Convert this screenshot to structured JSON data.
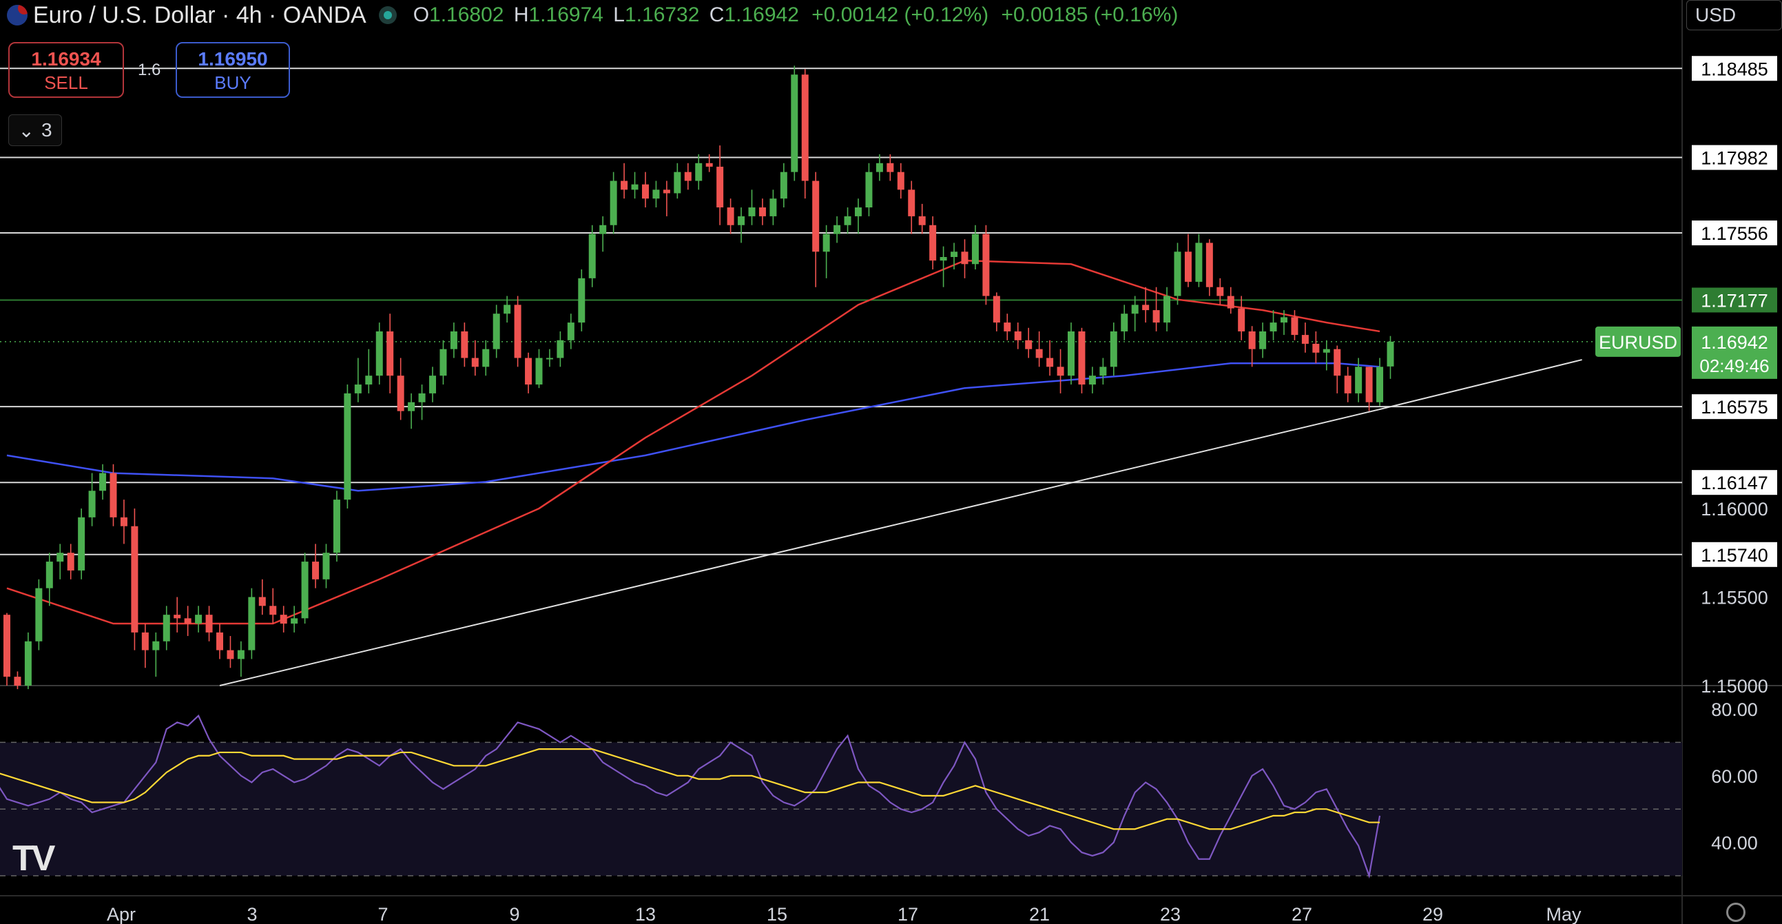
{
  "header": {
    "title": "Euro / U.S. Dollar · 4h · OANDA",
    "ohlc": [
      {
        "k": "O",
        "v": "1.16802"
      },
      {
        "k": "H",
        "v": "1.16974"
      },
      {
        "k": "L",
        "v": "1.16732"
      },
      {
        "k": "C",
        "v": "1.16942"
      },
      {
        "k": "",
        "v": "+0.00142 (+0.12%)"
      },
      {
        "k": "",
        "v": "+0.00185 (+0.16%)"
      }
    ]
  },
  "trade": {
    "sell_price": "1.16934",
    "sell_label": "SELL",
    "spread": "1.6",
    "buy_price": "1.16950",
    "buy_label": "BUY"
  },
  "indicators_toggle": {
    "count": "3"
  },
  "currency_selector": "USD",
  "symbol_tag": "EURUSD",
  "current_price": "1.16942",
  "countdown": "02:49:46",
  "colors": {
    "up": "#4caf50",
    "down": "#ef5350",
    "ma_fast": "#e53935",
    "ma_slow": "#3f51f5",
    "rsi": "#7e57c2",
    "rsi_ma": "#fdd835"
  },
  "chart_data": {
    "type": "candlestick",
    "timeframe": "4h",
    "price_axis_ticks": [
      "1.18485",
      "1.17982",
      "1.17556",
      "1.17177",
      "1.16942",
      "1.16575",
      "1.16147",
      "1.16000",
      "1.15740",
      "1.15500",
      "1.15000"
    ],
    "horizontal_levels": [
      1.18485,
      1.17982,
      1.17556,
      1.17177,
      1.16575,
      1.16147,
      1.1574
    ],
    "highlighted_level": 1.17177,
    "ylim": [
      1.15,
      1.187
    ],
    "x_tick_labels": [
      "Apr",
      "3",
      "7",
      "9",
      "13",
      "15",
      "17",
      "21",
      "23",
      "27",
      "29",
      "May"
    ],
    "rsi_axis_ticks": [
      "80.00",
      "60.00",
      "40.00"
    ],
    "rsi_bands": [
      70,
      50,
      30
    ],
    "rsi_ylim": [
      24,
      86
    ],
    "candles": [
      [
        1.154,
        1.1541,
        1.15,
        1.1505
      ],
      [
        1.1505,
        1.1508,
        1.1498,
        1.15
      ],
      [
        1.15,
        1.153,
        1.1498,
        1.1525
      ],
      [
        1.1525,
        1.156,
        1.152,
        1.1555
      ],
      [
        1.1555,
        1.1575,
        1.1545,
        1.157
      ],
      [
        1.157,
        1.158,
        1.156,
        1.1575
      ],
      [
        1.1575,
        1.158,
        1.156,
        1.1565
      ],
      [
        1.1565,
        1.16,
        1.156,
        1.1595
      ],
      [
        1.1595,
        1.162,
        1.159,
        1.161
      ],
      [
        1.161,
        1.1625,
        1.1605,
        1.162
      ],
      [
        1.162,
        1.1625,
        1.159,
        1.1595
      ],
      [
        1.1595,
        1.1605,
        1.158,
        1.159
      ],
      [
        1.159,
        1.16,
        1.152,
        1.153
      ],
      [
        1.153,
        1.1535,
        1.151,
        1.152
      ],
      [
        1.152,
        1.153,
        1.1505,
        1.1525
      ],
      [
        1.1525,
        1.1545,
        1.152,
        1.154
      ],
      [
        1.154,
        1.155,
        1.153,
        1.1538
      ],
      [
        1.1538,
        1.1545,
        1.1528,
        1.1535
      ],
      [
        1.1535,
        1.1545,
        1.153,
        1.154
      ],
      [
        1.154,
        1.1545,
        1.1525,
        1.153
      ],
      [
        1.153,
        1.1535,
        1.1515,
        1.152
      ],
      [
        1.152,
        1.1528,
        1.151,
        1.1515
      ],
      [
        1.1515,
        1.1525,
        1.1505,
        1.152
      ],
      [
        1.152,
        1.1555,
        1.1515,
        1.155
      ],
      [
        1.155,
        1.156,
        1.154,
        1.1545
      ],
      [
        1.1545,
        1.1555,
        1.1535,
        1.154
      ],
      [
        1.154,
        1.1545,
        1.153,
        1.1535
      ],
      [
        1.1535,
        1.1545,
        1.153,
        1.1538
      ],
      [
        1.1538,
        1.1575,
        1.1535,
        1.157
      ],
      [
        1.157,
        1.158,
        1.1555,
        1.156
      ],
      [
        1.156,
        1.158,
        1.1555,
        1.1575
      ],
      [
        1.1575,
        1.161,
        1.157,
        1.1605
      ],
      [
        1.1605,
        1.167,
        1.16,
        1.1665
      ],
      [
        1.1665,
        1.1685,
        1.166,
        1.167
      ],
      [
        1.167,
        1.169,
        1.1665,
        1.1675
      ],
      [
        1.1675,
        1.1705,
        1.167,
        1.17
      ],
      [
        1.17,
        1.171,
        1.1665,
        1.1675
      ],
      [
        1.1675,
        1.1685,
        1.165,
        1.1655
      ],
      [
        1.1655,
        1.1665,
        1.1645,
        1.166
      ],
      [
        1.166,
        1.167,
        1.165,
        1.1665
      ],
      [
        1.1665,
        1.168,
        1.166,
        1.1675
      ],
      [
        1.1675,
        1.1695,
        1.167,
        1.169
      ],
      [
        1.169,
        1.1705,
        1.1685,
        1.17
      ],
      [
        1.17,
        1.1705,
        1.168,
        1.1685
      ],
      [
        1.1685,
        1.1695,
        1.1675,
        1.168
      ],
      [
        1.168,
        1.1695,
        1.1675,
        1.169
      ],
      [
        1.169,
        1.1715,
        1.1685,
        1.171
      ],
      [
        1.171,
        1.172,
        1.1705,
        1.1715
      ],
      [
        1.1715,
        1.172,
        1.168,
        1.1685
      ],
      [
        1.1685,
        1.1688,
        1.1665,
        1.167
      ],
      [
        1.167,
        1.169,
        1.1668,
        1.1685
      ],
      [
        1.1685,
        1.169,
        1.168,
        1.1685
      ],
      [
        1.1685,
        1.17,
        1.168,
        1.1695
      ],
      [
        1.1695,
        1.171,
        1.169,
        1.1705
      ],
      [
        1.1705,
        1.1735,
        1.17,
        1.173
      ],
      [
        1.173,
        1.176,
        1.1725,
        1.1755
      ],
      [
        1.1755,
        1.1765,
        1.1745,
        1.176
      ],
      [
        1.176,
        1.179,
        1.1755,
        1.1785
      ],
      [
        1.1785,
        1.1795,
        1.1775,
        1.178
      ],
      [
        1.178,
        1.179,
        1.1775,
        1.1783
      ],
      [
        1.1783,
        1.179,
        1.177,
        1.1775
      ],
      [
        1.1775,
        1.1785,
        1.177,
        1.178
      ],
      [
        1.178,
        1.1785,
        1.1765,
        1.1778
      ],
      [
        1.1778,
        1.1795,
        1.1775,
        1.179
      ],
      [
        1.179,
        1.1795,
        1.178,
        1.1785
      ],
      [
        1.1785,
        1.18,
        1.178,
        1.1795
      ],
      [
        1.1795,
        1.18,
        1.179,
        1.1793
      ],
      [
        1.1793,
        1.1805,
        1.176,
        1.177
      ],
      [
        1.177,
        1.1775,
        1.1755,
        1.176
      ],
      [
        1.176,
        1.177,
        1.175,
        1.1765
      ],
      [
        1.1765,
        1.178,
        1.176,
        1.177
      ],
      [
        1.177,
        1.1775,
        1.176,
        1.1765
      ],
      [
        1.1765,
        1.178,
        1.176,
        1.1775
      ],
      [
        1.1775,
        1.1795,
        1.177,
        1.179
      ],
      [
        1.179,
        1.185,
        1.1785,
        1.1845
      ],
      [
        1.1845,
        1.1848,
        1.1775,
        1.1785
      ],
      [
        1.1785,
        1.179,
        1.1725,
        1.1745
      ],
      [
        1.1745,
        1.176,
        1.173,
        1.1755
      ],
      [
        1.1755,
        1.1765,
        1.175,
        1.176
      ],
      [
        1.176,
        1.177,
        1.1755,
        1.1765
      ],
      [
        1.1765,
        1.1775,
        1.1755,
        1.177
      ],
      [
        1.177,
        1.1795,
        1.1765,
        1.179
      ],
      [
        1.179,
        1.18,
        1.1785,
        1.1795
      ],
      [
        1.1795,
        1.18,
        1.1785,
        1.179
      ],
      [
        1.179,
        1.1795,
        1.1775,
        1.178
      ],
      [
        1.178,
        1.1785,
        1.1755,
        1.1765
      ],
      [
        1.1765,
        1.1772,
        1.1755,
        1.176
      ],
      [
        1.176,
        1.1765,
        1.1735,
        1.174
      ],
      [
        1.174,
        1.1748,
        1.1725,
        1.1742
      ],
      [
        1.1742,
        1.175,
        1.1735,
        1.1745
      ],
      [
        1.1745,
        1.1752,
        1.173,
        1.1738
      ],
      [
        1.1738,
        1.176,
        1.1735,
        1.1755
      ],
      [
        1.1755,
        1.176,
        1.1715,
        1.172
      ],
      [
        1.172,
        1.1722,
        1.17,
        1.1705
      ],
      [
        1.1705,
        1.171,
        1.1695,
        1.17
      ],
      [
        1.17,
        1.1705,
        1.169,
        1.1695
      ],
      [
        1.1695,
        1.1702,
        1.1685,
        1.169
      ],
      [
        1.169,
        1.17,
        1.168,
        1.1685
      ],
      [
        1.1685,
        1.1695,
        1.1675,
        1.168
      ],
      [
        1.168,
        1.169,
        1.1665,
        1.1675
      ],
      [
        1.1675,
        1.1705,
        1.167,
        1.17
      ],
      [
        1.17,
        1.1702,
        1.1665,
        1.167
      ],
      [
        1.167,
        1.168,
        1.1665,
        1.1675
      ],
      [
        1.1675,
        1.1685,
        1.167,
        1.168
      ],
      [
        1.168,
        1.1705,
        1.1675,
        1.17
      ],
      [
        1.17,
        1.1715,
        1.1695,
        1.171
      ],
      [
        1.171,
        1.172,
        1.17,
        1.1715
      ],
      [
        1.1715,
        1.1725,
        1.1705,
        1.1712
      ],
      [
        1.1712,
        1.1725,
        1.17,
        1.1705
      ],
      [
        1.1705,
        1.1725,
        1.17,
        1.172
      ],
      [
        1.172,
        1.175,
        1.1715,
        1.1745
      ],
      [
        1.1745,
        1.1755,
        1.1725,
        1.1728
      ],
      [
        1.1728,
        1.1755,
        1.1725,
        1.175
      ],
      [
        1.175,
        1.1752,
        1.172,
        1.1725
      ],
      [
        1.1725,
        1.173,
        1.1715,
        1.172
      ],
      [
        1.172,
        1.1725,
        1.171,
        1.1713
      ],
      [
        1.1713,
        1.172,
        1.1695,
        1.17
      ],
      [
        1.17,
        1.1703,
        1.168,
        1.169
      ],
      [
        1.169,
        1.1705,
        1.1685,
        1.17
      ],
      [
        1.17,
        1.1712,
        1.1695,
        1.1705
      ],
      [
        1.1705,
        1.1712,
        1.1698,
        1.1708
      ],
      [
        1.1708,
        1.1712,
        1.1695,
        1.1698
      ],
      [
        1.1698,
        1.1705,
        1.1688,
        1.1693
      ],
      [
        1.1693,
        1.17,
        1.1682,
        1.1688
      ],
      [
        1.1688,
        1.1695,
        1.1678,
        1.169
      ],
      [
        1.169,
        1.1692,
        1.1665,
        1.1675
      ],
      [
        1.1675,
        1.168,
        1.166,
        1.1665
      ],
      [
        1.1665,
        1.1685,
        1.166,
        1.168
      ],
      [
        1.168,
        1.168,
        1.1655,
        1.166
      ],
      [
        1.166,
        1.1685,
        1.1658,
        1.168
      ],
      [
        1.16802,
        1.16974,
        1.16732,
        1.16942
      ]
    ],
    "ma_fast_anchor_values": [
      [
        0,
        1.1555
      ],
      [
        10,
        1.1535
      ],
      [
        25,
        1.1535
      ],
      [
        35,
        1.156
      ],
      [
        50,
        1.16
      ],
      [
        60,
        1.164
      ],
      [
        70,
        1.1675
      ],
      [
        80,
        1.1715
      ],
      [
        90,
        1.174
      ],
      [
        100,
        1.1738
      ],
      [
        110,
        1.1718
      ],
      [
        118,
        1.1712
      ],
      [
        124,
        1.1705
      ],
      [
        129,
        1.17
      ]
    ],
    "ma_slow_anchor_values": [
      [
        0,
        1.163
      ],
      [
        10,
        1.162
      ],
      [
        25,
        1.1617
      ],
      [
        33,
        1.161
      ],
      [
        45,
        1.1615
      ],
      [
        60,
        1.163
      ],
      [
        75,
        1.165
      ],
      [
        90,
        1.1668
      ],
      [
        105,
        1.1675
      ],
      [
        115,
        1.1682
      ],
      [
        125,
        1.1682
      ],
      [
        129,
        1.168
      ]
    ],
    "trendline": [
      [
        20,
        1.15
      ],
      [
        129,
        1.1656
      ],
      [
        148,
        1.1684
      ]
    ],
    "rsi": [
      52,
      46,
      38,
      30,
      31,
      48,
      58,
      62,
      66,
      70,
      66,
      62,
      63,
      66,
      68,
      70,
      70,
      66,
      62,
      58,
      53,
      52,
      51,
      52,
      53,
      55,
      53,
      52,
      49,
      50,
      51,
      52,
      56,
      60,
      64,
      74,
      76,
      75,
      78,
      71,
      66,
      63,
      60,
      58,
      61,
      62,
      60,
      58,
      59,
      61,
      63,
      66,
      68,
      67,
      65,
      63,
      66,
      68,
      64,
      61,
      58,
      56,
      58,
      60,
      62,
      66,
      68,
      72,
      76,
      75,
      74,
      72,
      70,
      72,
      70,
      68,
      64,
      62,
      60,
      58,
      57,
      55,
      54,
      56,
      58,
      62,
      64,
      66,
      70,
      68,
      66,
      58,
      54,
      52,
      51,
      53,
      56,
      62,
      68,
      72,
      62,
      57,
      55,
      52,
      50,
      49,
      50,
      52,
      58,
      63,
      70,
      65,
      55,
      50,
      47,
      44,
      42,
      43,
      45,
      44,
      40,
      37,
      36,
      37,
      40,
      48,
      55,
      58,
      56,
      52,
      47,
      40,
      35,
      35,
      42,
      48,
      54,
      60,
      62,
      57,
      51,
      50,
      52,
      55,
      56,
      50,
      44,
      39,
      30,
      48
    ],
    "rsi_ma": [
      47,
      46,
      45,
      44,
      43,
      43,
      45,
      48,
      51,
      54,
      56,
      58,
      59,
      60,
      61,
      62,
      63,
      63,
      62,
      61,
      60,
      59,
      58,
      57,
      56,
      55,
      54,
      53,
      52,
      52,
      52,
      52,
      53,
      55,
      58,
      61,
      63,
      65,
      66,
      66,
      67,
      67,
      67,
      66,
      66,
      66,
      66,
      65,
      65,
      65,
      65,
      65,
      66,
      66,
      66,
      66,
      66,
      67,
      67,
      66,
      65,
      64,
      63,
      63,
      63,
      63,
      64,
      65,
      66,
      67,
      68,
      68,
      68,
      68,
      68,
      68,
      67,
      66,
      65,
      64,
      63,
      62,
      61,
      60,
      60,
      59,
      59,
      59,
      60,
      60,
      60,
      59,
      58,
      57,
      56,
      55,
      55,
      55,
      56,
      57,
      58,
      58,
      58,
      57,
      56,
      55,
      54,
      54,
      54,
      55,
      56,
      57,
      56,
      55,
      54,
      53,
      52,
      51,
      50,
      49,
      48,
      47,
      46,
      45,
      44,
      44,
      44,
      45,
      46,
      47,
      47,
      46,
      45,
      44,
      44,
      44,
      45,
      46,
      47,
      48,
      48,
      49,
      49,
      50,
      50,
      49,
      48,
      47,
      46,
      46
    ]
  }
}
